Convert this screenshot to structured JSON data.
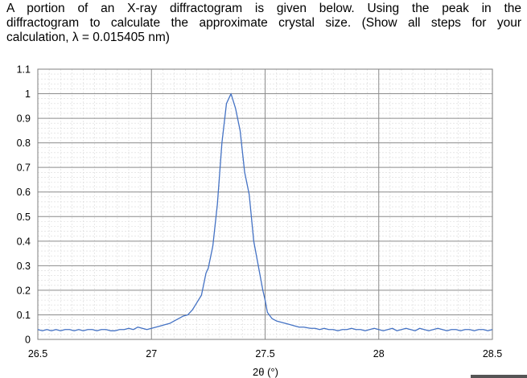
{
  "question": {
    "line1": "A portion of an X-ray diffractogram is given below. Using the peak in the",
    "line2": "diffractogram to calculate the approximate crystal size. (Show all steps for your",
    "line3": "calculation, λ = 0.015405 nm)"
  },
  "chart_data": {
    "type": "line",
    "title": "",
    "xlabel": "2θ (°)",
    "ylabel": "",
    "xlim": [
      26.5,
      28.5
    ],
    "ylim": [
      0,
      1.1
    ],
    "xticks": [
      26.5,
      27,
      27.5,
      28,
      28.5
    ],
    "xtick_labels": [
      "26.5",
      "27",
      "27.5",
      "28",
      "28.5"
    ],
    "yticks": [
      0,
      0.1,
      0.2,
      0.3,
      0.4,
      0.5,
      0.6,
      0.7,
      0.8,
      0.9,
      1,
      1.1
    ],
    "ytick_labels": [
      "0",
      "0.1",
      "0.2",
      "0.3",
      "0.4",
      "0.5",
      "0.6",
      "0.7",
      "0.8",
      "0.9",
      "1",
      "1.1"
    ],
    "grid": true,
    "legend": "none",
    "line_color": "#4472C4",
    "series": [
      {
        "x": [
          26.5,
          26.52,
          26.54,
          26.56,
          26.58,
          26.6,
          26.62,
          26.64,
          26.66,
          26.68,
          26.7,
          26.72,
          26.74,
          26.76,
          26.78,
          26.8,
          26.82,
          26.84,
          26.86,
          26.88,
          26.9,
          26.92,
          26.94,
          26.96,
          26.98,
          27.0,
          27.02,
          27.04,
          27.06,
          27.08,
          27.1,
          27.12,
          27.14,
          27.16,
          27.18,
          27.2,
          27.22,
          27.24,
          27.25,
          27.27,
          27.29,
          27.31,
          27.33,
          27.35,
          27.37,
          27.39,
          27.41,
          27.43,
          27.45,
          27.47,
          27.49,
          27.5,
          27.51,
          27.53,
          27.55,
          27.57,
          27.59,
          27.61,
          27.63,
          27.65,
          27.67,
          27.7,
          27.72,
          27.74,
          27.76,
          27.78,
          27.8,
          27.82,
          27.84,
          27.86,
          27.88,
          27.9,
          27.92,
          27.94,
          27.96,
          27.98,
          28.0,
          28.02,
          28.04,
          28.06,
          28.08,
          28.1,
          28.12,
          28.14,
          28.16,
          28.18,
          28.2,
          28.22,
          28.24,
          28.26,
          28.28,
          28.3,
          28.32,
          28.34,
          28.36,
          28.38,
          28.4,
          28.42,
          28.44,
          28.46,
          28.48,
          28.5
        ],
        "y": [
          0.04,
          0.035,
          0.04,
          0.035,
          0.04,
          0.035,
          0.04,
          0.04,
          0.035,
          0.04,
          0.035,
          0.04,
          0.04,
          0.035,
          0.04,
          0.04,
          0.035,
          0.035,
          0.04,
          0.04,
          0.045,
          0.04,
          0.05,
          0.045,
          0.04,
          0.045,
          0.05,
          0.055,
          0.06,
          0.065,
          0.075,
          0.085,
          0.095,
          0.1,
          0.12,
          0.15,
          0.18,
          0.27,
          0.29,
          0.38,
          0.55,
          0.8,
          0.96,
          1.0,
          0.94,
          0.85,
          0.68,
          0.59,
          0.4,
          0.3,
          0.2,
          0.16,
          0.11,
          0.085,
          0.075,
          0.07,
          0.065,
          0.06,
          0.055,
          0.05,
          0.05,
          0.045,
          0.045,
          0.04,
          0.045,
          0.04,
          0.04,
          0.035,
          0.04,
          0.04,
          0.045,
          0.04,
          0.04,
          0.035,
          0.04,
          0.045,
          0.04,
          0.035,
          0.04,
          0.045,
          0.035,
          0.04,
          0.045,
          0.04,
          0.035,
          0.045,
          0.04,
          0.035,
          0.04,
          0.045,
          0.04,
          0.035,
          0.04,
          0.04,
          0.035,
          0.04,
          0.04,
          0.035,
          0.04,
          0.04,
          0.035,
          0.04
        ]
      }
    ]
  }
}
